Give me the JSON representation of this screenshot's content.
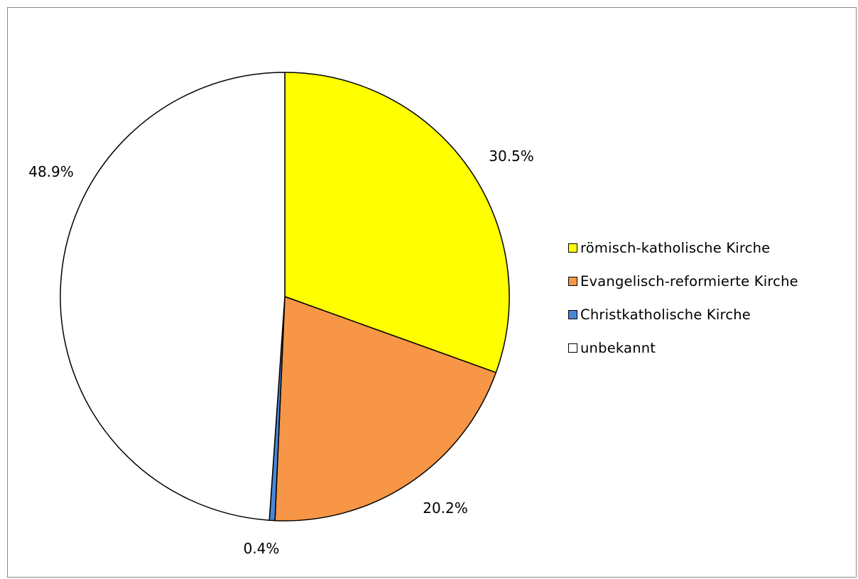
{
  "chart_data": {
    "type": "pie",
    "start_angle_deg": 0,
    "direction": "clockwise",
    "slices": [
      {
        "label": "römisch-katholische Kirche",
        "value": 30.5,
        "value_label": "30.5%",
        "color": "#ffff00"
      },
      {
        "label": "Evangelisch-reformierte Kirche",
        "value": 20.2,
        "value_label": "20.2%",
        "color": "#f79646"
      },
      {
        "label": "Christkatholische Kirche",
        "value": 0.4,
        "value_label": "0.4%",
        "color": "#4a86d8"
      },
      {
        "label": "unbekannt",
        "value": 48.9,
        "value_label": "48.9%",
        "color": "#ffffff"
      }
    ],
    "legend": {
      "placement": "right",
      "entries": [
        "römisch-katholische Kirche",
        "Evangelisch-reformierte Kirche",
        "Christkatholische Kirche",
        "unbekannt"
      ]
    },
    "slice_outline_color": "#000000"
  }
}
